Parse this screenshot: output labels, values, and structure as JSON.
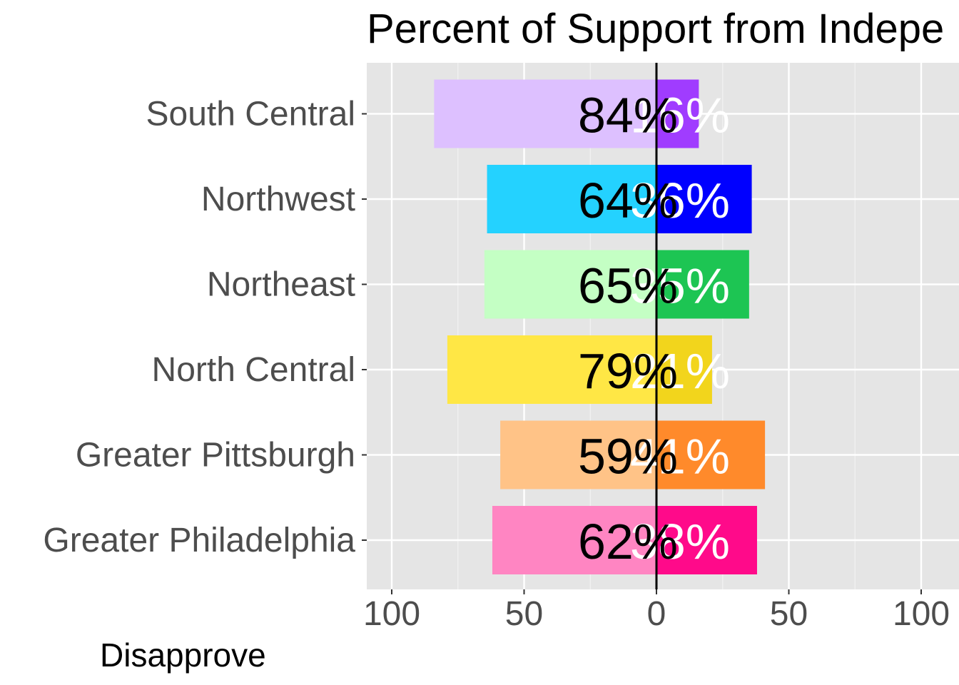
{
  "chart_data": {
    "type": "bar",
    "orientation": "horizontal-diverging",
    "title": "Percent of Support from Indepe",
    "footer_label": "Disapprove",
    "categories": [
      "Greater Philadelphia",
      "Greater Pittsburgh",
      "North Central",
      "Northeast",
      "Northwest",
      "South Central"
    ],
    "series": [
      {
        "values": [
          62,
          59,
          79,
          65,
          64,
          84
        ],
        "labels": [
          "62%",
          "59%",
          "79%",
          "65%",
          "64%",
          "84%"
        ],
        "colors": [
          "#FF85C2",
          "#FFC387",
          "#FFE745",
          "#C4FFC4",
          "#24D2FF",
          "#DDC0FF"
        ]
      },
      {
        "values": [
          38,
          41,
          21,
          35,
          36,
          16
        ],
        "labels": [
          "38%",
          "41%",
          "21%",
          "35%",
          "36%",
          "16%"
        ],
        "colors": [
          "#FF0A8A",
          "#FF8A2B",
          "#F2D51C",
          "#1DC553",
          "#0000FF",
          "#A03CFF"
        ]
      }
    ],
    "xlim": [
      -110,
      110
    ],
    "xticks": [
      -100,
      -50,
      0,
      50,
      100
    ],
    "xtick_labels": [
      "100",
      "50",
      "0",
      "50",
      "100"
    ],
    "grid": true,
    "panel_background": "#E5E5E5"
  }
}
